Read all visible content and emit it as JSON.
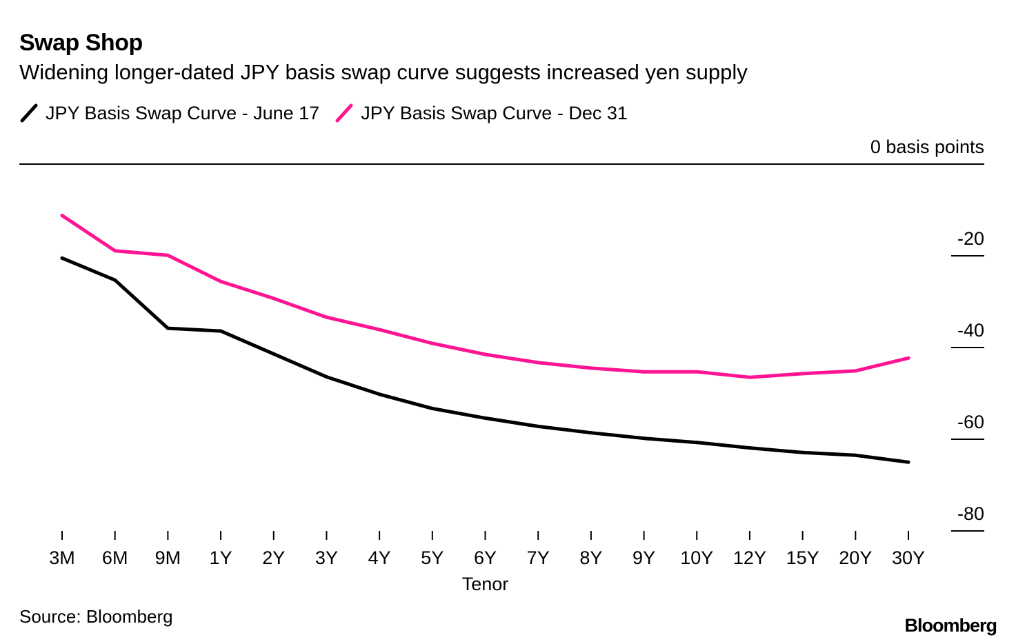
{
  "chart_data": {
    "type": "line",
    "title": "Swap Shop",
    "subtitle": "Widening longer-dated JPY basis swap curve suggests increased yen supply",
    "xlabel": "Tenor",
    "ylabel": "basis points",
    "y_top_label": "0 basis points",
    "categories": [
      "3M",
      "6M",
      "9M",
      "1Y",
      "2Y",
      "3Y",
      "4Y",
      "5Y",
      "6Y",
      "7Y",
      "8Y",
      "9Y",
      "10Y",
      "12Y",
      "15Y",
      "20Y",
      "30Y"
    ],
    "series": [
      {
        "name": "JPY Basis Swap Curve - June 17",
        "color": "#000000",
        "values": [
          -20.5,
          -25.3,
          -35.8,
          -36.4,
          -41.4,
          -46.4,
          -50.2,
          -53.3,
          -55.4,
          -57.2,
          -58.6,
          -59.8,
          -60.7,
          -61.9,
          -62.9,
          -63.5,
          -65.0
        ]
      },
      {
        "name": "JPY Basis Swap Curve - Dec 31",
        "color": "#ff1493",
        "values": [
          -11.2,
          -18.9,
          -19.9,
          -25.6,
          -29.3,
          -33.4,
          -36.1,
          -39.1,
          -41.5,
          -43.3,
          -44.5,
          -45.3,
          -45.3,
          -46.5,
          -45.7,
          -45.1,
          -42.3
        ]
      }
    ],
    "y_ticks": [
      0,
      -20,
      -40,
      -60,
      -80
    ],
    "y_tick_labels": [
      "0 basis points",
      "-20",
      "-40",
      "-60",
      "-80"
    ],
    "ylim": [
      -80,
      0
    ],
    "legend_position": "top-left",
    "source": "Source: Bloomberg",
    "brand": "Bloomberg"
  }
}
